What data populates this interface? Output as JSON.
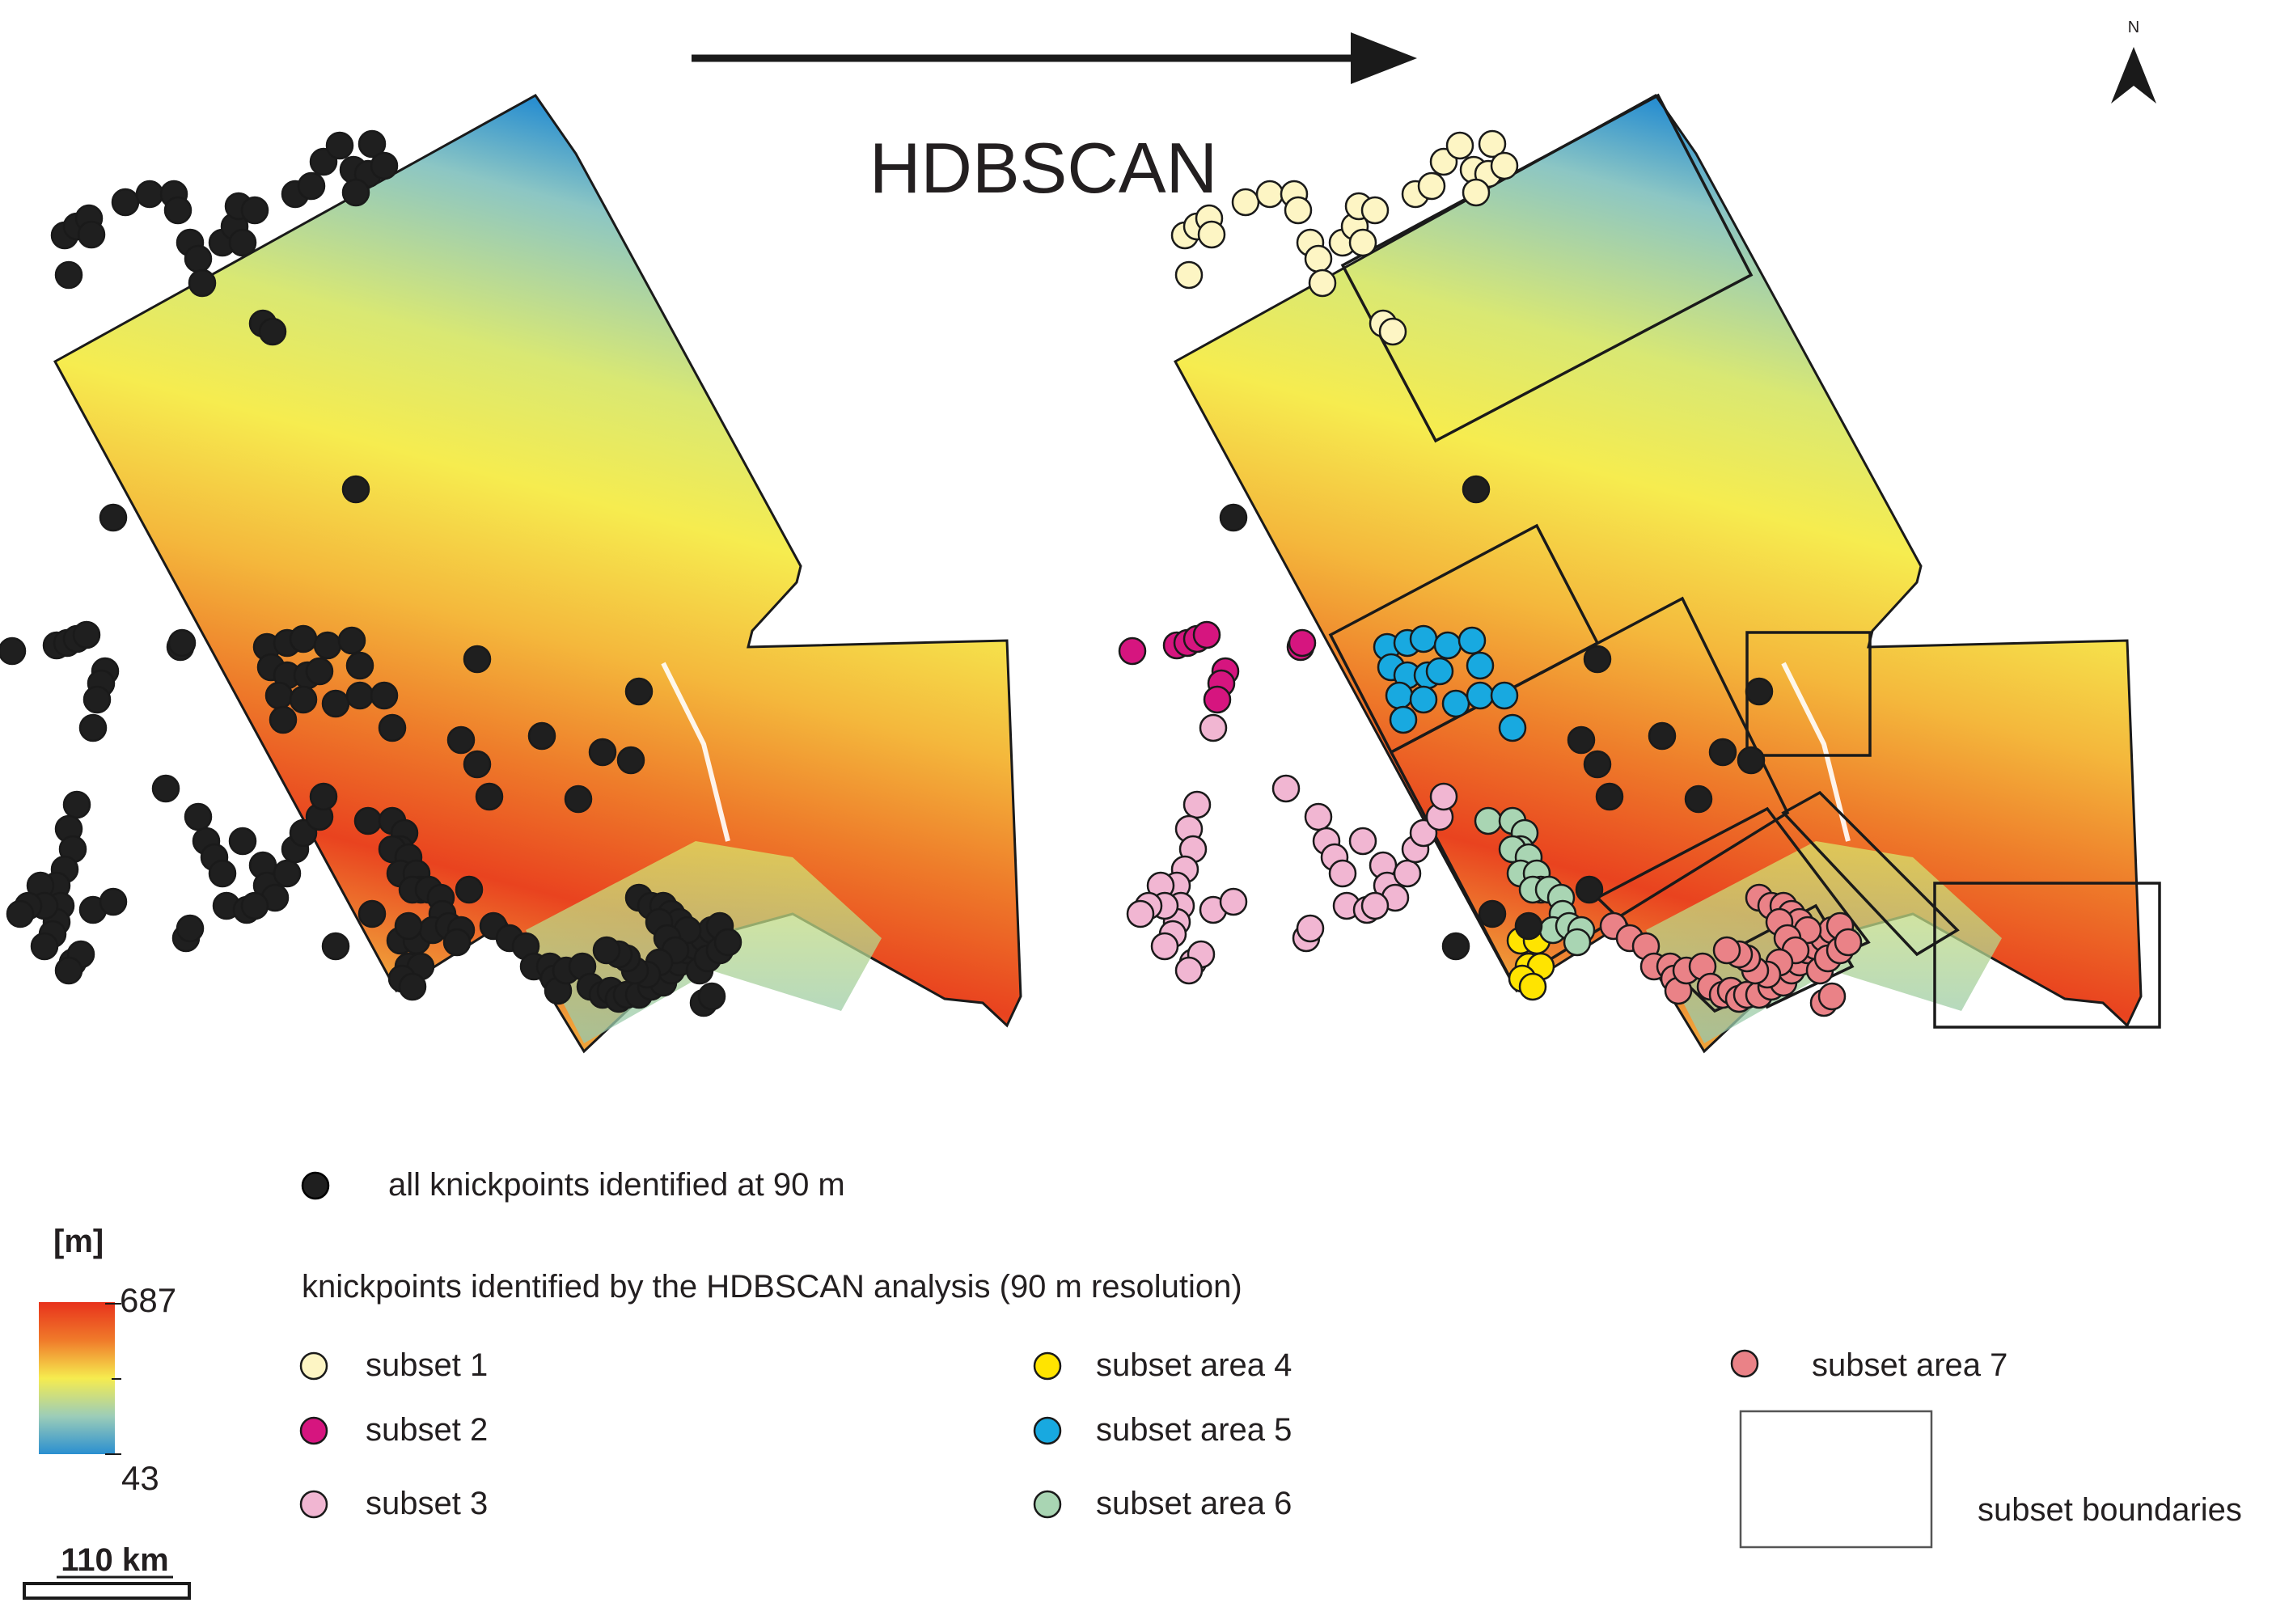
{
  "title": "HDBSCAN",
  "north_label": "N",
  "colors": {
    "outline": "#1a1a1a",
    "all_knickpoints": "#1f1f1f",
    "subset_1": "#fdf5c4",
    "subset_2": "#d6157f",
    "subset_3": "#f1b6d2",
    "subset_4": "#ffe400",
    "subset_5": "#18a9e0",
    "subset_6": "#a9d5b3",
    "subset_7": "#ea8287",
    "elev_low": "#2a8fd0",
    "elev_mid": "#f5ec52",
    "elev_high": "#e8321c"
  },
  "elevation_legend": {
    "unit": "[m]",
    "max": "687",
    "min": "43"
  },
  "scale_bar": {
    "label": "110 km"
  },
  "legend": {
    "all_knickpoints": "all knickpoints identified at 90 m",
    "hdbscan_heading": "knickpoints identified by the HDBSCAN analysis (90 m resolution)",
    "items": [
      {
        "key": "subset_1",
        "label": "subset 1"
      },
      {
        "key": "subset_2",
        "label": "subset 2"
      },
      {
        "key": "subset_3",
        "label": "subset 3"
      },
      {
        "key": "subset_4",
        "label": "subset area 4"
      },
      {
        "key": "subset_5",
        "label": "subset area 5"
      },
      {
        "key": "subset_6",
        "label": "subset area 6"
      },
      {
        "key": "subset_7",
        "label": "subset area 7"
      }
    ],
    "boundaries": "subset boundaries"
  }
}
